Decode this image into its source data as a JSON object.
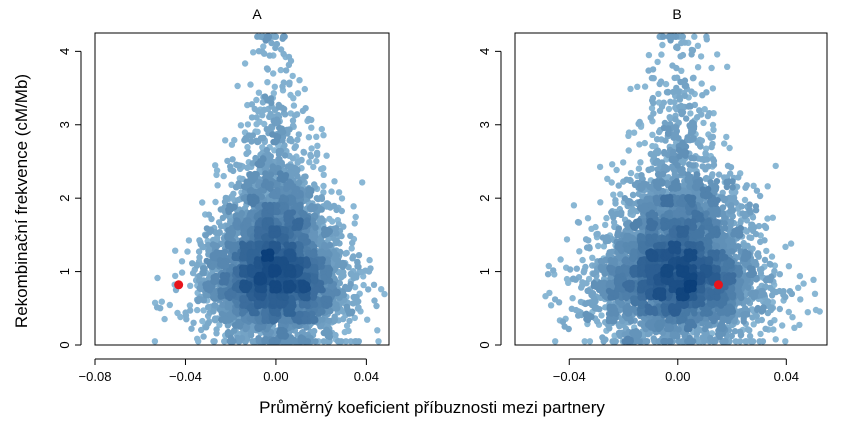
{
  "figure": {
    "xlabel": "Průměrný koeficient příbuznosti mezi partnery",
    "ylabel": "Rekombinační frekvence (cM/Mb)"
  },
  "colors": {
    "density_low": "#9cc9e2",
    "density_high": "#0b3f7a",
    "highlight": "#e8141b",
    "frame": "#000000"
  },
  "chart_data": [
    {
      "type": "scatter",
      "title": "A",
      "xlim": [
        -0.08,
        0.05
      ],
      "ylim": [
        0,
        4.25
      ],
      "xticks": [
        -0.08,
        -0.04,
        0.0,
        0.04
      ],
      "xtick_labels": [
        "−0.08",
        "−0.04",
        "0.00",
        "0.04"
      ],
      "yticks": [
        0,
        1,
        2,
        3,
        4
      ],
      "ytick_labels": [
        "0",
        "1",
        "2",
        "3",
        "4"
      ],
      "grid": false,
      "density_cloud": {
        "n_points": 5000,
        "x_center": 0.0,
        "x_sd": 0.013,
        "modes": [
          0.85,
          1.3
        ],
        "y_range": [
          0.05,
          4.2
        ]
      },
      "highlight_point": {
        "x": -0.043,
        "y": 0.82
      }
    },
    {
      "type": "scatter",
      "title": "B",
      "xlim": [
        -0.06,
        0.055
      ],
      "ylim": [
        0,
        4.25
      ],
      "xticks": [
        -0.04,
        0.0,
        0.04
      ],
      "xtick_labels": [
        "−0.04",
        "0.00",
        "0.04"
      ],
      "yticks": [
        0,
        1,
        2,
        3,
        4
      ],
      "ytick_labels": [
        "0",
        "1",
        "2",
        "3",
        "4"
      ],
      "grid": false,
      "density_cloud": {
        "n_points": 5000,
        "x_center": 0.0,
        "x_sd": 0.013,
        "modes": [
          0.85,
          1.3
        ],
        "y_range": [
          0.05,
          4.2
        ]
      },
      "highlight_point": {
        "x": 0.015,
        "y": 0.82
      }
    }
  ]
}
